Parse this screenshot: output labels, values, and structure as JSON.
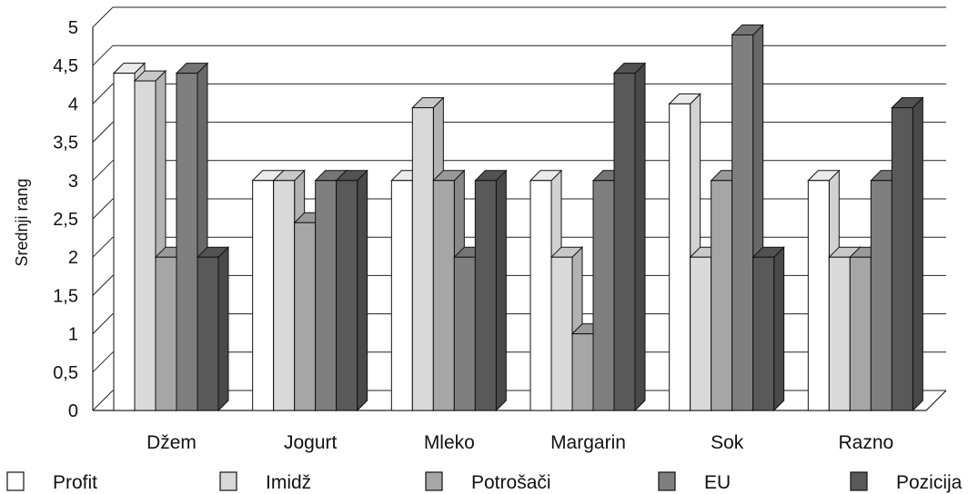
{
  "chart_data": {
    "type": "bar",
    "ylabel": "Srednji rang",
    "xlabel": "",
    "ylim": [
      0,
      5
    ],
    "ytick_labels": [
      "0",
      "0,5",
      "1",
      "1,5",
      "2",
      "2,5",
      "3",
      "3,5",
      "4",
      "4,5",
      "5"
    ],
    "categories": [
      "Džem",
      "Jogurt",
      "Mleko",
      "Margarin",
      "Sok",
      "Razno"
    ],
    "series": [
      {
        "name": "Profit",
        "color": "#ffffff",
        "values": [
          4.4,
          3.0,
          3.0,
          3.0,
          4.0,
          3.0
        ]
      },
      {
        "name": "Imidž",
        "color": "#d9d9d9",
        "values": [
          4.3,
          3.0,
          3.95,
          2.0,
          2.0,
          2.0
        ]
      },
      {
        "name": "Potrošači",
        "color": "#a6a6a6",
        "values": [
          2.0,
          2.45,
          3.0,
          1.0,
          3.0,
          2.0
        ]
      },
      {
        "name": "EU",
        "color": "#7f7f7f",
        "values": [
          4.4,
          3.0,
          2.0,
          3.0,
          4.9,
          3.0
        ]
      },
      {
        "name": "Pozicija",
        "color": "#595959",
        "values": [
          2.0,
          3.0,
          3.0,
          4.4,
          2.0,
          3.95
        ]
      }
    ],
    "grid": true,
    "legend_position": "bottom"
  }
}
